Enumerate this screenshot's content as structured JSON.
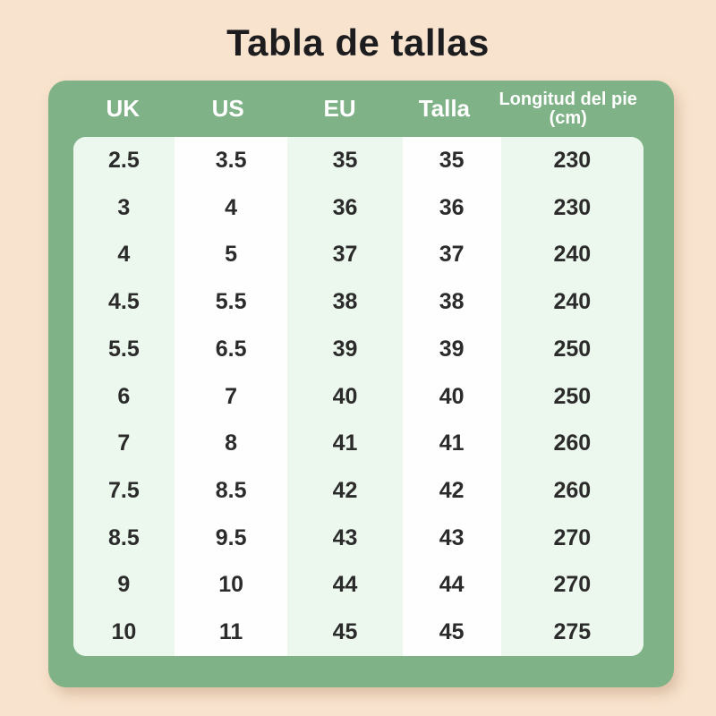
{
  "page": {
    "title": "Tabla de tallas"
  },
  "table": {
    "columns": [
      "UK",
      "US",
      "EU",
      "Talla",
      "Longitud del pie (cm)"
    ],
    "rows": [
      [
        "2.5",
        "3.5",
        "35",
        "35",
        "230"
      ],
      [
        "3",
        "4",
        "36",
        "36",
        "230"
      ],
      [
        "4",
        "5",
        "37",
        "37",
        "240"
      ],
      [
        "4.5",
        "5.5",
        "38",
        "38",
        "240"
      ],
      [
        "5.5",
        "6.5",
        "39",
        "39",
        "250"
      ],
      [
        "6",
        "7",
        "40",
        "40",
        "250"
      ],
      [
        "7",
        "8",
        "41",
        "41",
        "260"
      ],
      [
        "7.5",
        "8.5",
        "42",
        "42",
        "260"
      ],
      [
        "8.5",
        "9.5",
        "43",
        "43",
        "270"
      ],
      [
        "9",
        "10",
        "44",
        "44",
        "270"
      ],
      [
        "10",
        "11",
        "45",
        "45",
        "275"
      ]
    ]
  },
  "colors": {
    "background_peach": "#f8e3ce",
    "card_green": "#7fb287",
    "stripe_light_green": "#ecf7ed",
    "stripe_white": "#fdfefd",
    "header_text": "#ffffff",
    "body_text": "#2b2b2b",
    "title_text": "#1d1d1f"
  }
}
